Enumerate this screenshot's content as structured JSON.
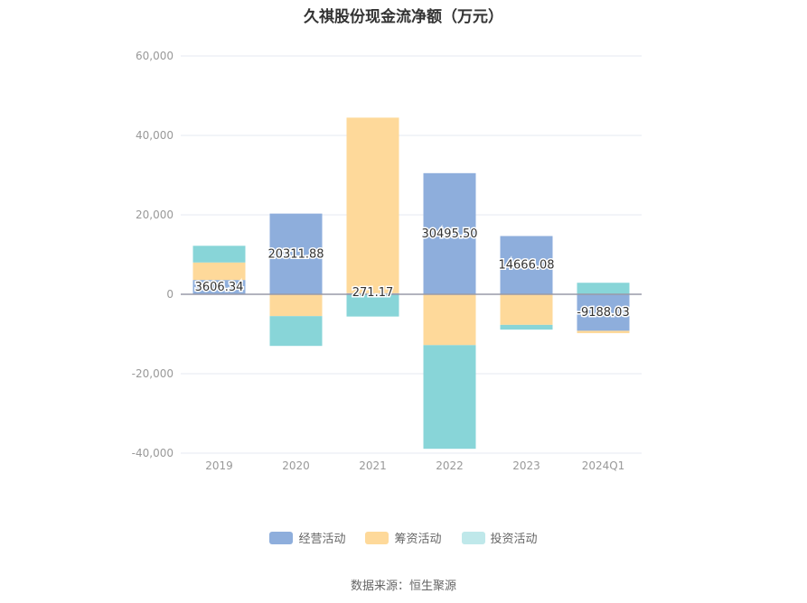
{
  "chart_data": {
    "type": "bar",
    "stacked": true,
    "title": "久祺股份现金流净额（万元）",
    "categories": [
      "2019",
      "2020",
      "2021",
      "2022",
      "2023",
      "2024Q1"
    ],
    "series": [
      {
        "name": "经营活动",
        "color": "#8eaedc",
        "values": [
          3606.34,
          20311.88,
          271.17,
          30495.5,
          14666.08,
          -9188.03
        ]
      },
      {
        "name": "筹资活动",
        "color": "#fed99a",
        "values": [
          4400,
          -5500,
          44200,
          -12800,
          -7700,
          -600
        ]
      },
      {
        "name": "投资活动",
        "color": "#88d5d8",
        "values": [
          4200,
          -7500,
          -5600,
          -26100,
          -1200,
          2900
        ]
      }
    ],
    "data_labels": [
      "3606.34",
      "20311.88",
      "271.17",
      "30495.50",
      "14666.08",
      "-9188.03"
    ],
    "y_ticks": [
      "60,000",
      "40,000",
      "20,000",
      "0",
      "-20,000",
      "-40,000"
    ],
    "ylim": [
      -40000,
      60000
    ],
    "grid": true,
    "legend_position": "bottom"
  },
  "source": "数据来源：恒生聚源"
}
